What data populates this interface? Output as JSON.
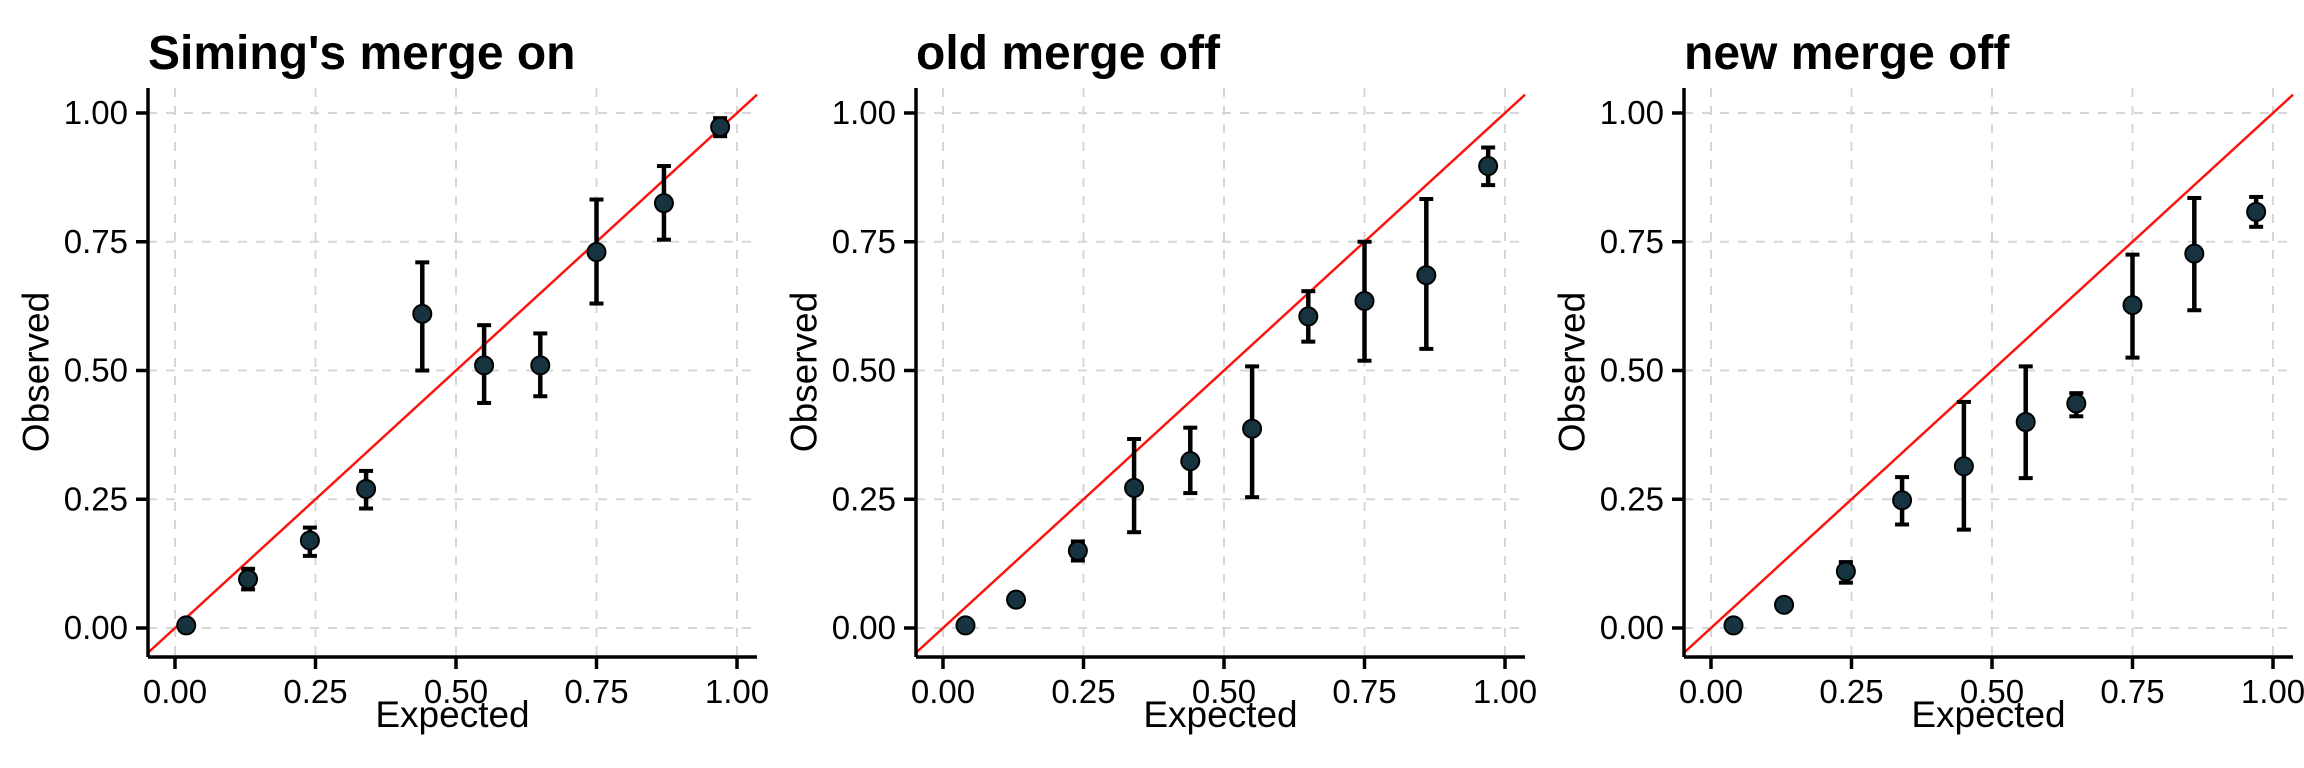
{
  "figure": {
    "background_color": "#ffffff",
    "axis_color": "#000000",
    "grid_color": "#d6d6d6",
    "tick_label_color": "#000000",
    "point_fill_color": "#17333f",
    "point_stroke_color": "#000000",
    "identity_line_color": "#fb1410"
  },
  "chart_data": [
    {
      "type": "scatter",
      "title": "Siming's merge on",
      "xlabel": "Expected",
      "ylabel": "Observed",
      "xlim": [
        -0.048,
        1.036
      ],
      "ylim": [
        -0.056,
        1.048
      ],
      "grid": "dashed-major",
      "legend": "none",
      "identity_line": true,
      "x_tick_values": [
        0,
        0.25,
        0.5,
        0.75,
        1.0
      ],
      "x_tick_labels": [
        "0.00",
        "0.25",
        "0.50",
        "0.75",
        "1.00"
      ],
      "y_tick_values": [
        0,
        0.25,
        0.5,
        0.75,
        1.0
      ],
      "y_tick_labels": [
        "0.00",
        "0.25",
        "0.50",
        "0.75",
        "1.00"
      ],
      "points": [
        {
          "x": 0.02,
          "y": 0.005,
          "ylo": 0.002,
          "yhi": 0.01
        },
        {
          "x": 0.13,
          "y": 0.095,
          "ylo": 0.075,
          "yhi": 0.115
        },
        {
          "x": 0.24,
          "y": 0.17,
          "ylo": 0.14,
          "yhi": 0.195
        },
        {
          "x": 0.34,
          "y": 0.27,
          "ylo": 0.232,
          "yhi": 0.305
        },
        {
          "x": 0.44,
          "y": 0.61,
          "ylo": 0.5,
          "yhi": 0.71
        },
        {
          "x": 0.55,
          "y": 0.51,
          "ylo": 0.437,
          "yhi": 0.588
        },
        {
          "x": 0.65,
          "y": 0.51,
          "ylo": 0.45,
          "yhi": 0.572
        },
        {
          "x": 0.75,
          "y": 0.73,
          "ylo": 0.63,
          "yhi": 0.832
        },
        {
          "x": 0.87,
          "y": 0.825,
          "ylo": 0.754,
          "yhi": 0.897
        },
        {
          "x": 0.97,
          "y": 0.973,
          "ylo": 0.955,
          "yhi": 0.99
        }
      ]
    },
    {
      "type": "scatter",
      "title": "old merge off",
      "xlabel": "Expected",
      "ylabel": "Observed",
      "xlim": [
        -0.048,
        1.036
      ],
      "ylim": [
        -0.056,
        1.048
      ],
      "grid": "dashed-major",
      "legend": "none",
      "identity_line": true,
      "x_tick_values": [
        0,
        0.25,
        0.5,
        0.75,
        1.0
      ],
      "x_tick_labels": [
        "0.00",
        "0.25",
        "0.50",
        "0.75",
        "1.00"
      ],
      "y_tick_values": [
        0,
        0.25,
        0.5,
        0.75,
        1.0
      ],
      "y_tick_labels": [
        "0.00",
        "0.25",
        "0.50",
        "0.75",
        "1.00"
      ],
      "points": [
        {
          "x": 0.04,
          "y": 0.005,
          "ylo": 0.002,
          "yhi": 0.01
        },
        {
          "x": 0.13,
          "y": 0.055,
          "ylo": 0.048,
          "yhi": 0.063
        },
        {
          "x": 0.24,
          "y": 0.15,
          "ylo": 0.131,
          "yhi": 0.168
        },
        {
          "x": 0.34,
          "y": 0.272,
          "ylo": 0.186,
          "yhi": 0.367
        },
        {
          "x": 0.44,
          "y": 0.324,
          "ylo": 0.262,
          "yhi": 0.389
        },
        {
          "x": 0.55,
          "y": 0.387,
          "ylo": 0.254,
          "yhi": 0.508
        },
        {
          "x": 0.65,
          "y": 0.605,
          "ylo": 0.556,
          "yhi": 0.654
        },
        {
          "x": 0.75,
          "y": 0.635,
          "ylo": 0.519,
          "yhi": 0.75
        },
        {
          "x": 0.86,
          "y": 0.685,
          "ylo": 0.542,
          "yhi": 0.833
        },
        {
          "x": 0.97,
          "y": 0.897,
          "ylo": 0.86,
          "yhi": 0.933
        }
      ]
    },
    {
      "type": "scatter",
      "title": "new merge off",
      "xlabel": "Expected",
      "ylabel": "Observed",
      "xlim": [
        -0.048,
        1.036
      ],
      "ylim": [
        -0.056,
        1.048
      ],
      "grid": "dashed-major",
      "legend": "none",
      "identity_line": true,
      "x_tick_values": [
        0,
        0.25,
        0.5,
        0.75,
        1.0
      ],
      "x_tick_labels": [
        "0.00",
        "0.25",
        "0.50",
        "0.75",
        "1.00"
      ],
      "y_tick_values": [
        0,
        0.25,
        0.5,
        0.75,
        1.0
      ],
      "y_tick_labels": [
        "0.00",
        "0.25",
        "0.50",
        "0.75",
        "1.00"
      ],
      "points": [
        {
          "x": 0.04,
          "y": 0.005,
          "ylo": 0.002,
          "yhi": 0.01
        },
        {
          "x": 0.13,
          "y": 0.045,
          "ylo": 0.038,
          "yhi": 0.053
        },
        {
          "x": 0.24,
          "y": 0.11,
          "ylo": 0.088,
          "yhi": 0.128
        },
        {
          "x": 0.34,
          "y": 0.248,
          "ylo": 0.201,
          "yhi": 0.293
        },
        {
          "x": 0.45,
          "y": 0.314,
          "ylo": 0.191,
          "yhi": 0.439
        },
        {
          "x": 0.56,
          "y": 0.4,
          "ylo": 0.291,
          "yhi": 0.508
        },
        {
          "x": 0.65,
          "y": 0.436,
          "ylo": 0.411,
          "yhi": 0.456
        },
        {
          "x": 0.75,
          "y": 0.627,
          "ylo": 0.525,
          "yhi": 0.725
        },
        {
          "x": 0.86,
          "y": 0.727,
          "ylo": 0.617,
          "yhi": 0.835
        },
        {
          "x": 0.97,
          "y": 0.808,
          "ylo": 0.779,
          "yhi": 0.837
        }
      ]
    }
  ]
}
